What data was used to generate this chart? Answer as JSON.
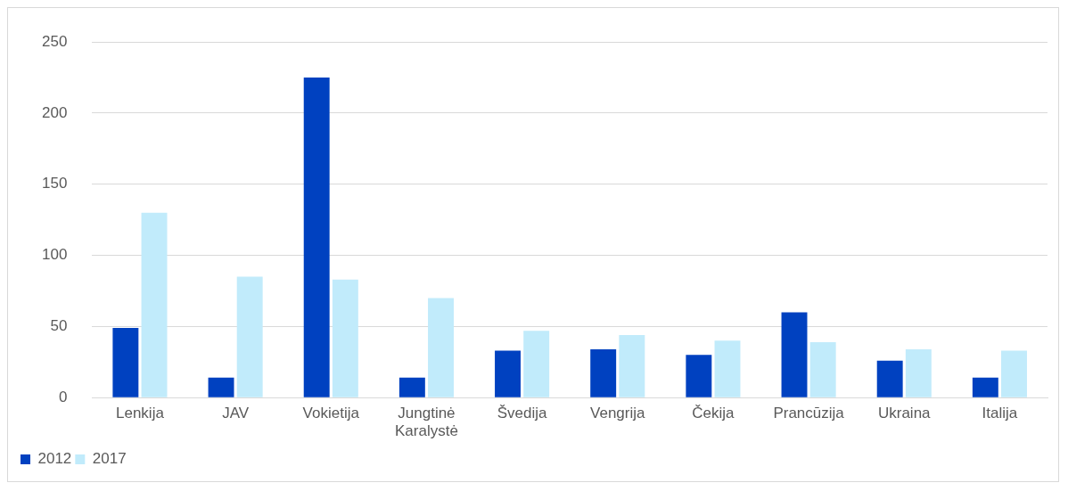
{
  "chart_data": {
    "type": "bar",
    "categories": [
      "Lenkija",
      "JAV",
      "Vokietija",
      "Jungtinė Karalystė",
      "Švedija",
      "Vengrija",
      "Čekija",
      "Prancūzija",
      "Ukraina",
      "Italija"
    ],
    "series": [
      {
        "name": "2012",
        "color": "#0041c0",
        "values": [
          49,
          14,
          225,
          14,
          33,
          34,
          30,
          60,
          26,
          14
        ]
      },
      {
        "name": "2017",
        "color": "#c1ebfb",
        "values": [
          130,
          85,
          83,
          70,
          47,
          44,
          40,
          39,
          34,
          33
        ]
      }
    ],
    "ylim": [
      0,
      250
    ],
    "yticks": [
      0,
      50,
      100,
      150,
      200,
      250
    ],
    "grid": "y",
    "legend": "bottom left"
  }
}
